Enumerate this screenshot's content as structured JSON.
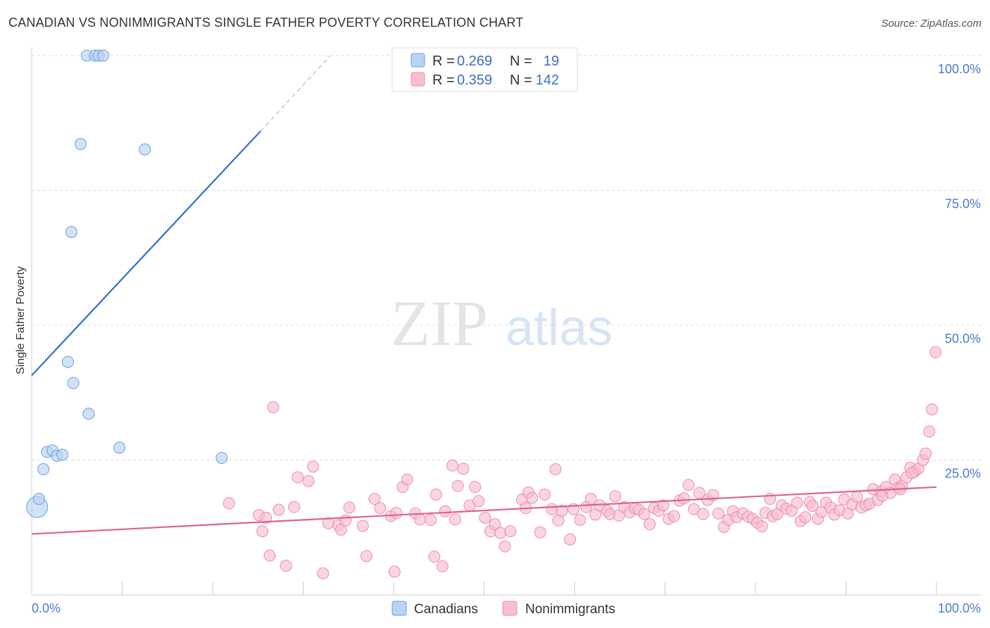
{
  "title": "CANADIAN VS NONIMMIGRANTS SINGLE FATHER POVERTY CORRELATION CHART",
  "source": "Source: ZipAtlas.com",
  "watermark": {
    "zip": "ZIP",
    "atlas": "atlas"
  },
  "colors": {
    "canadians_fill": "#b9d3f3",
    "canadians_stroke": "#6f9fdc",
    "canadians_line": "#2f6fd0",
    "nonimmigrants_fill": "#f7bfd0",
    "nonimmigrants_stroke": "#ea8fad",
    "nonimmigrants_line": "#e0618d",
    "tick_text": "#4a7cc9",
    "grid": "#dddddd"
  },
  "legend": {
    "r_label": "R =",
    "n_label": "N =",
    "rows": [
      {
        "series": "Canadians",
        "r": "0.269",
        "n": "19"
      },
      {
        "series": "Nonimmigrants",
        "r": "0.359",
        "n": "142"
      }
    ]
  },
  "chart_data": {
    "type": "scatter",
    "title": "CANADIAN VS NONIMMIGRANTS SINGLE FATHER POVERTY CORRELATION CHART",
    "xlabel": "",
    "ylabel": "Single Father Poverty",
    "xlim": [
      0,
      100
    ],
    "ylim": [
      0,
      100
    ],
    "x_tick_labels": [
      "0.0%",
      "100.0%"
    ],
    "y_ticks": [
      25,
      50,
      75,
      100
    ],
    "y_tick_labels": [
      "25.0%",
      "50.0%",
      "75.0%",
      "100.0%"
    ],
    "grid": "horizontal dashed",
    "legend_position": "top-center",
    "series": [
      {
        "name": "Canadians",
        "points": [
          [
            0.6,
            16.3
          ],
          [
            0.8,
            17.8
          ],
          [
            1.3,
            23.3
          ],
          [
            1.7,
            26.5
          ],
          [
            2.3,
            26.8
          ],
          [
            2.8,
            25.8
          ],
          [
            3.4,
            26.0
          ],
          [
            4.0,
            43.2
          ],
          [
            4.4,
            67.3
          ],
          [
            4.6,
            39.3
          ],
          [
            5.4,
            83.6
          ],
          [
            6.3,
            33.6
          ],
          [
            6.1,
            100.0
          ],
          [
            7.0,
            100.0
          ],
          [
            7.4,
            100.0
          ],
          [
            7.9,
            100.0
          ],
          [
            9.7,
            27.3
          ],
          [
            12.5,
            82.6
          ],
          [
            21.0,
            25.4
          ]
        ],
        "trend": {
          "x0": 0,
          "y0": 40.7,
          "x1": 25.3,
          "y1": 86.0,
          "dash_to_x": 33.0,
          "dash_to_y": 100.0
        }
      },
      {
        "name": "Nonimmigrants",
        "points": [
          [
            21.8,
            17.0
          ],
          [
            25.1,
            14.8
          ],
          [
            25.5,
            11.8
          ],
          [
            25.9,
            14.3
          ],
          [
            26.3,
            7.3
          ],
          [
            26.7,
            34.8
          ],
          [
            27.3,
            15.8
          ],
          [
            28.1,
            5.4
          ],
          [
            29.0,
            16.3
          ],
          [
            29.4,
            21.8
          ],
          [
            30.6,
            21.1
          ],
          [
            31.1,
            23.8
          ],
          [
            32.2,
            4.0
          ],
          [
            32.8,
            13.3
          ],
          [
            33.9,
            12.9
          ],
          [
            34.2,
            12.1
          ],
          [
            34.7,
            13.8
          ],
          [
            35.1,
            16.2
          ],
          [
            36.6,
            12.8
          ],
          [
            37.0,
            7.2
          ],
          [
            37.9,
            17.8
          ],
          [
            38.5,
            16.1
          ],
          [
            39.7,
            14.6
          ],
          [
            40.1,
            4.3
          ],
          [
            40.3,
            15.2
          ],
          [
            41.0,
            20.0
          ],
          [
            41.5,
            21.4
          ],
          [
            42.4,
            15.1
          ],
          [
            42.9,
            14.0
          ],
          [
            44.1,
            13.9
          ],
          [
            44.5,
            7.1
          ],
          [
            44.7,
            18.6
          ],
          [
            45.4,
            5.3
          ],
          [
            45.7,
            15.5
          ],
          [
            46.5,
            24.0
          ],
          [
            46.8,
            14.0
          ],
          [
            47.1,
            20.2
          ],
          [
            47.7,
            23.4
          ],
          [
            48.4,
            16.6
          ],
          [
            49.0,
            20.0
          ],
          [
            49.4,
            17.4
          ],
          [
            50.1,
            14.3
          ],
          [
            50.7,
            11.8
          ],
          [
            51.2,
            13.1
          ],
          [
            51.8,
            11.5
          ],
          [
            52.3,
            9.0
          ],
          [
            52.9,
            11.8
          ],
          [
            54.2,
            17.7
          ],
          [
            54.6,
            16.1
          ],
          [
            54.9,
            19.0
          ],
          [
            55.3,
            18.0
          ],
          [
            56.2,
            11.6
          ],
          [
            56.7,
            18.6
          ],
          [
            57.5,
            15.9
          ],
          [
            57.9,
            23.3
          ],
          [
            58.2,
            13.8
          ],
          [
            58.6,
            15.6
          ],
          [
            59.5,
            10.3
          ],
          [
            59.9,
            15.9
          ],
          [
            60.6,
            13.9
          ],
          [
            61.3,
            16.3
          ],
          [
            61.8,
            17.8
          ],
          [
            62.3,
            14.9
          ],
          [
            62.8,
            16.6
          ],
          [
            63.6,
            15.6
          ],
          [
            63.9,
            15.0
          ],
          [
            64.5,
            18.3
          ],
          [
            64.9,
            14.7
          ],
          [
            65.5,
            16.3
          ],
          [
            66.1,
            15.3
          ],
          [
            66.7,
            16.0
          ],
          [
            67.1,
            15.8
          ],
          [
            67.7,
            15.0
          ],
          [
            68.3,
            13.1
          ],
          [
            68.8,
            16.1
          ],
          [
            69.3,
            15.6
          ],
          [
            69.8,
            16.6
          ],
          [
            70.4,
            14.1
          ],
          [
            71.0,
            14.6
          ],
          [
            71.6,
            17.5
          ],
          [
            72.1,
            17.9
          ],
          [
            72.6,
            20.4
          ],
          [
            73.2,
            15.9
          ],
          [
            73.8,
            18.9
          ],
          [
            74.2,
            15.0
          ],
          [
            74.7,
            17.6
          ],
          [
            75.3,
            18.5
          ],
          [
            75.9,
            15.1
          ],
          [
            76.5,
            12.6
          ],
          [
            77.0,
            13.9
          ],
          [
            77.5,
            15.5
          ],
          [
            77.9,
            14.4
          ],
          [
            78.6,
            15.1
          ],
          [
            79.2,
            14.5
          ],
          [
            79.7,
            14.1
          ],
          [
            80.2,
            13.4
          ],
          [
            80.7,
            12.7
          ],
          [
            81.1,
            15.2
          ],
          [
            81.6,
            17.8
          ],
          [
            81.9,
            14.6
          ],
          [
            82.4,
            15.0
          ],
          [
            82.9,
            16.6
          ],
          [
            83.4,
            16.0
          ],
          [
            84.0,
            15.6
          ],
          [
            84.6,
            17.1
          ],
          [
            85.0,
            13.7
          ],
          [
            85.5,
            14.4
          ],
          [
            86.0,
            17.2
          ],
          [
            86.3,
            16.5
          ],
          [
            86.9,
            14.1
          ],
          [
            87.3,
            15.4
          ],
          [
            87.8,
            17.1
          ],
          [
            88.3,
            16.2
          ],
          [
            88.7,
            14.9
          ],
          [
            89.3,
            15.7
          ],
          [
            89.8,
            17.7
          ],
          [
            90.2,
            15.1
          ],
          [
            90.7,
            16.8
          ],
          [
            91.2,
            18.2
          ],
          [
            91.7,
            16.2
          ],
          [
            92.2,
            16.6
          ],
          [
            92.6,
            16.9
          ],
          [
            93.0,
            19.6
          ],
          [
            93.5,
            17.6
          ],
          [
            93.9,
            19.2
          ],
          [
            94.4,
            20.0
          ],
          [
            94.9,
            18.9
          ],
          [
            95.4,
            21.4
          ],
          [
            95.8,
            19.9
          ],
          [
            96.2,
            20.2
          ],
          [
            96.7,
            21.8
          ],
          [
            97.1,
            23.6
          ],
          [
            97.6,
            22.9
          ],
          [
            98.0,
            23.4
          ],
          [
            98.5,
            25.0
          ],
          [
            98.8,
            26.2
          ],
          [
            99.2,
            30.3
          ],
          [
            99.5,
            34.4
          ],
          [
            99.9,
            45.0
          ],
          [
            97.3,
            22.6
          ],
          [
            96.0,
            19.6
          ],
          [
            94.0,
            18.4
          ]
        ],
        "trend": {
          "x0": 0,
          "y0": 11.3,
          "x1": 100,
          "y1": 20.0
        }
      }
    ]
  },
  "bottom_legend": [
    "Canadians",
    "Nonimmigrants"
  ]
}
